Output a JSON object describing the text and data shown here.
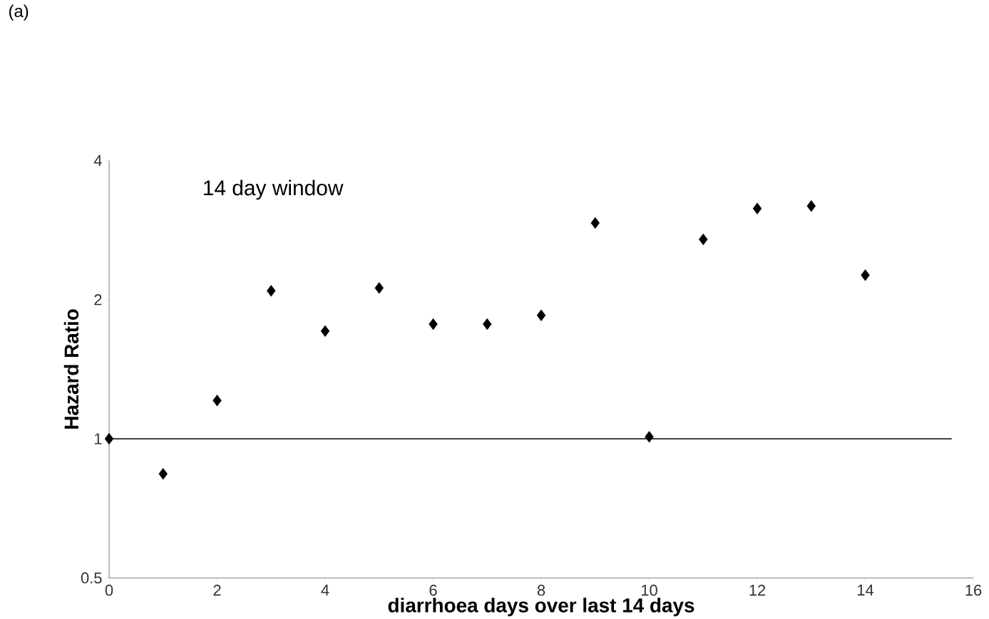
{
  "chart_data": {
    "type": "scatter",
    "title": "14 day window",
    "xlabel": "diarrhoea days over last 14 days",
    "ylabel": "Hazard Ratio",
    "annotations": [
      "(a)"
    ],
    "x": [
      0,
      1,
      2,
      3,
      4,
      5,
      6,
      7,
      8,
      9,
      10,
      11,
      12,
      13,
      14
    ],
    "values": [
      1.0,
      0.84,
      1.21,
      2.09,
      1.71,
      2.12,
      1.77,
      1.77,
      1.85,
      2.93,
      1.01,
      2.7,
      3.15,
      3.19,
      2.26
    ],
    "color": "#000000",
    "marker": "diamond",
    "log": "y",
    "xlim": [
      0,
      16
    ],
    "ylim": [
      0.5,
      4
    ],
    "xticks": [
      0,
      2,
      4,
      6,
      8,
      10,
      12,
      14,
      16
    ],
    "yticks": [
      0.5,
      1,
      2,
      4
    ],
    "ref_lines": [
      {
        "axis": "y",
        "value": 1,
        "color": "#000000"
      }
    ]
  }
}
